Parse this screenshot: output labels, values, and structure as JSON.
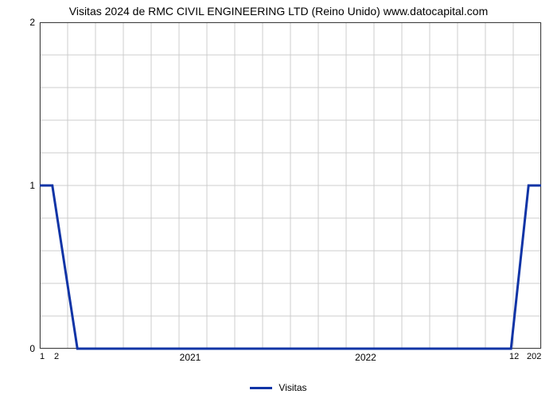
{
  "chart": {
    "type": "line",
    "title": "Visitas 2024 de RMC CIVIL ENGINEERING LTD (Reino Unido) www.datocapital.com",
    "title_fontsize": 14,
    "background_color": "#ffffff",
    "plot_bg": "#ffffff",
    "grid_color": "#cccccc",
    "border_color": "#404040",
    "border_width": 1,
    "ylim": [
      0,
      2
    ],
    "yticks": [
      0,
      1,
      2
    ],
    "y_minor_count": 4,
    "xlabels_major": [
      "2021",
      "2022"
    ],
    "xlabels_major_pos": [
      0.3,
      0.65
    ],
    "xlabels_left": [
      "1",
      "2"
    ],
    "xlabels_right": [
      "12",
      "202"
    ],
    "series": {
      "name": "Visitas",
      "color": "#1034a6",
      "line_width": 3,
      "points_x": [
        0.0,
        0.025,
        0.075,
        0.1,
        0.94,
        0.975,
        1.0
      ],
      "points_y": [
        1.0,
        1.0,
        0.0,
        0.0,
        0.0,
        1.0,
        1.0
      ]
    }
  },
  "legend": {
    "label": "Visitas"
  }
}
